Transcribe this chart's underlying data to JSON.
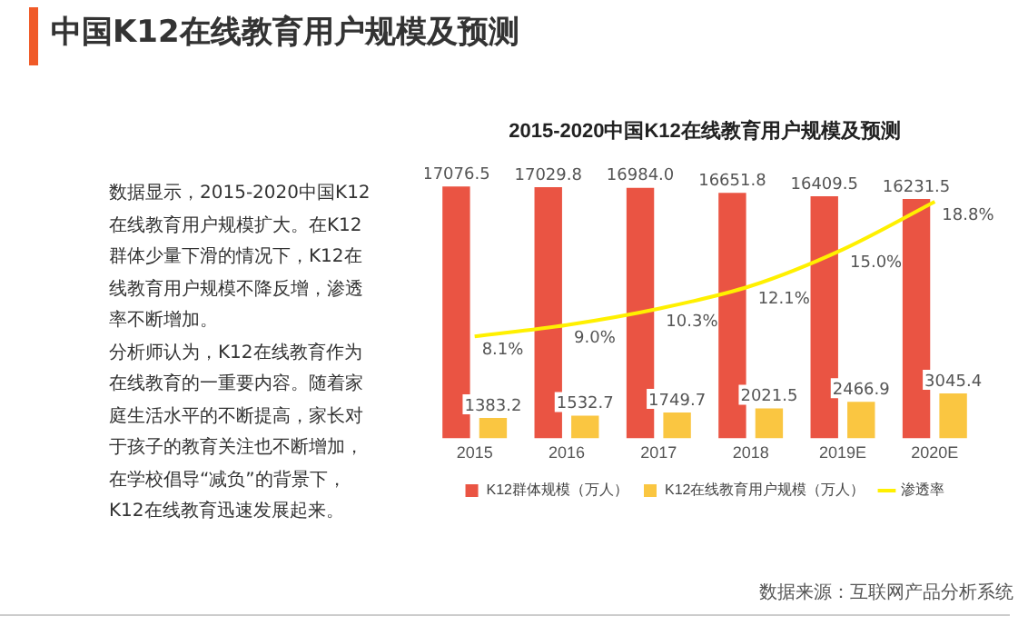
{
  "chart_data": {
    "type": "bar",
    "title": "中国K12在线教育用户规模及预测",
    "subtitle": "2015-2020中国K12在线教育用户规模及预测",
    "categories": [
      "2015",
      "2016",
      "2017",
      "2018",
      "2019E",
      "2020E"
    ],
    "series": [
      {
        "name": "K12群体规模（万人）",
        "color": "#ea5443",
        "values": [
          17076.5,
          17029.8,
          16984.0,
          16651.8,
          16409.5,
          16231.5
        ],
        "value_labels": [
          "17076.5",
          "17029.8",
          "16984.0",
          "16651.8",
          "16409.5",
          "16231.5"
        ]
      },
      {
        "name": "K12在线教育用户规模（万人）",
        "color": "#fac641",
        "values": [
          1383.2,
          1532.7,
          1749.7,
          2021.5,
          2466.9,
          3045.4
        ],
        "value_labels": [
          "1383.2",
          "1532.7",
          "1749.7",
          "2021.5",
          "2466.9",
          "3045.4"
        ]
      },
      {
        "name": "渗透率",
        "type": "line",
        "axis": "y2",
        "color": "#fff000",
        "values": [
          8.1,
          9.0,
          10.3,
          12.1,
          15.0,
          18.8
        ],
        "value_labels": [
          "8.1%",
          "9.0%",
          "10.3%",
          "12.1%",
          "15.0%",
          "18.8%"
        ]
      }
    ],
    "ylim": [
      0,
      17500
    ],
    "y2lim": [
      0,
      20.5
    ],
    "data_labels": true,
    "legend": "bottom",
    "grid": false,
    "marker": "none",
    "line_style": "solid",
    "tick_labels": "x",
    "annotations": [
      "数据显示，2015-2020中国K12在线教育用户规模扩大。在K12群体少量下滑的情况下，K12在线教育用户规模不降反增，渗透率不断增加。",
      "分析师认为，K12在线教育作为在线教育的一重要内容。随着家庭生活水平的不断提高，家长对于孩子的教育关注也不断增加，在学校倡导“减负”的背景下，K12在线教育迅速发展起来。",
      "数据来源：互联网产品分析系统"
    ]
  }
}
